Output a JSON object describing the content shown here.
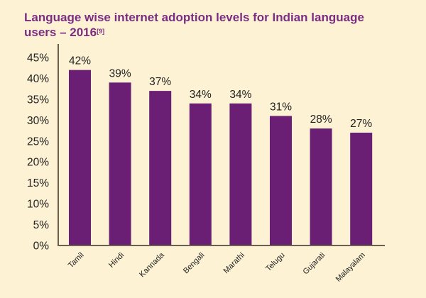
{
  "chart_data": {
    "type": "bar",
    "title": "Language wise internet adoption levels for Indian language users – 2016",
    "title_ref": "[9]",
    "categories": [
      "Tamil",
      "Hindi",
      "Kannada",
      "Bengali",
      "Marathi",
      "Telugu",
      "Gujarati",
      "Malayalam"
    ],
    "values": [
      42,
      39,
      37,
      34,
      34,
      31,
      28,
      27
    ],
    "data_labels": [
      "42%",
      "39%",
      "37%",
      "34%",
      "34%",
      "31%",
      "28%",
      "27%"
    ],
    "yticks": [
      "0%",
      "5%",
      "10%",
      "15%",
      "20%",
      "25%",
      "30%",
      "35%",
      "40%",
      "45%"
    ],
    "ylim": [
      0,
      45
    ],
    "xlabel": "",
    "ylabel": "",
    "grid": false,
    "legend": "none",
    "colors": {
      "bar": "#6a1f74",
      "title": "#7b2d82",
      "background": "#fef2d4",
      "axis": "#6b6050"
    }
  }
}
